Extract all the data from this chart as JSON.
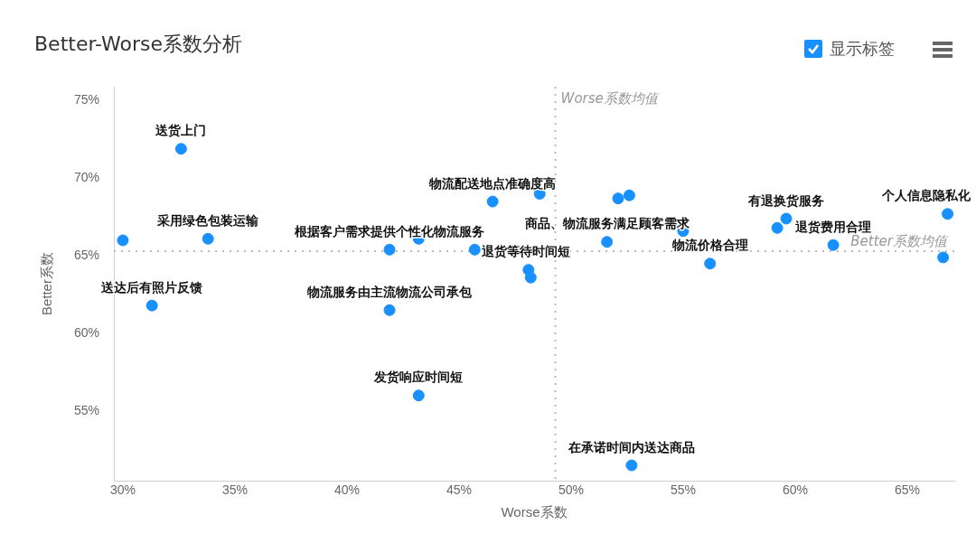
{
  "chart_data": {
    "type": "scatter",
    "title": "Better-Worse系数分析",
    "xlabel": "Worse系数",
    "ylabel": "Better系数",
    "annotations": [
      "显示标签"
    ],
    "series": [
      {
        "color": "#1890ff",
        "x": [
          32.6,
          30.0,
          33.8,
          31.3,
          41.9,
          43.2,
          41.9,
          43.2,
          46.5,
          48.6,
          45.7,
          48.1,
          48.2,
          52.1,
          52.6,
          51.6,
          55.0,
          56.2,
          59.6,
          59.2,
          61.7,
          66.8,
          66.6,
          52.7
        ],
        "values": [
          71.9,
          66.0,
          66.1,
          61.8,
          65.4,
          66.1,
          61.5,
          56.0,
          68.5,
          69.0,
          65.4,
          64.1,
          63.6,
          68.7,
          68.9,
          65.9,
          66.6,
          64.5,
          67.4,
          66.8,
          65.7,
          67.7,
          64.9,
          51.5
        ],
        "value_labels": [
          "送货上门",
          null,
          "采用绿色包装运输",
          "送达后有照片反馈",
          "根据客户需求提供个性化物流服务",
          null,
          "物流服务由主流物流公司承包",
          "发货响应时间短",
          "物流配送地点准确度高",
          null,
          "退货等待时间短",
          null,
          null,
          null,
          null,
          "商品、物流服务满足顾客需求",
          null,
          "物流价格合理",
          "有退换货服务",
          null,
          "退货费用合理",
          "个人信息隐私化",
          null,
          "在承诺时间内送达商品"
        ]
      }
    ],
    "xlim": [
      29.6,
      67.1
    ],
    "ylim": [
      50.5,
      75.9
    ],
    "xticks": [
      {
        "value": 30,
        "label": "30%"
      },
      {
        "value": 35,
        "label": "35%"
      },
      {
        "value": 40,
        "label": "40%"
      },
      {
        "value": 45,
        "label": "45%"
      },
      {
        "value": 50,
        "label": "50%"
      },
      {
        "value": 55,
        "label": "55%"
      },
      {
        "value": 60,
        "label": "60%"
      },
      {
        "value": 65,
        "label": "65%"
      }
    ],
    "yticks": [
      {
        "value": 55,
        "label": "55%"
      },
      {
        "value": 60,
        "label": "60%"
      },
      {
        "value": 65,
        "label": "65%"
      },
      {
        "value": 70,
        "label": "70%"
      },
      {
        "value": 75,
        "label": "75%"
      }
    ],
    "ref_lines": [
      {
        "axis": "x",
        "value": 49.3,
        "label": "Worse系数均值",
        "color": "#bbbbbb",
        "line_style": "dotted"
      },
      {
        "axis": "y",
        "value": 65.3,
        "label": "Better系数均值",
        "color": "#bbbbbb",
        "line_style": "dotted"
      }
    ],
    "grid": false,
    "legend": false,
    "marker": "circle"
  }
}
